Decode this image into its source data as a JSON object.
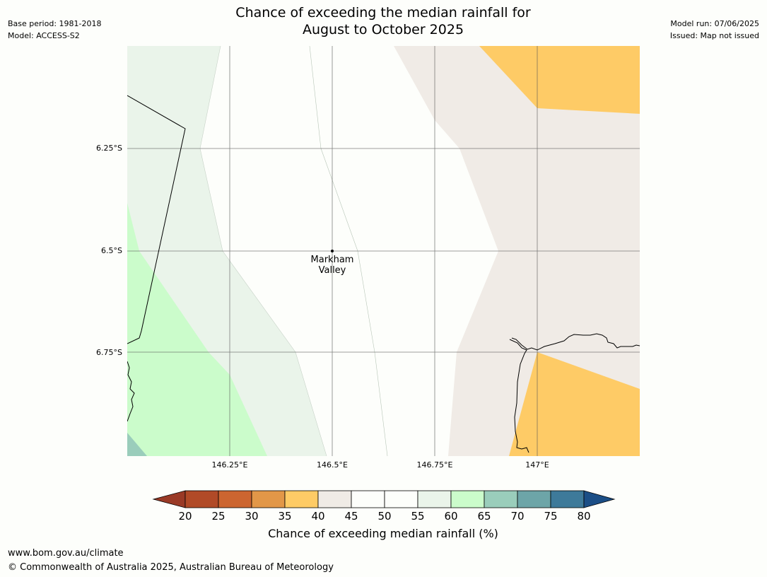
{
  "header": {
    "title_line1": "Chance of exceeding the median rainfall for",
    "title_line2": "August to October 2025",
    "base_period": "Base period: 1981-2018",
    "model": "Model: ACCESS-S2",
    "model_run": "Model run: 07/06/2025",
    "issued": "Issued: Map not issued"
  },
  "map": {
    "lon_ticks": [
      "146.25°E",
      "146.5°E",
      "146.75°E",
      "147°E"
    ],
    "lat_ticks": [
      "6.25°S",
      "6.5°S",
      "6.75°S"
    ],
    "location": {
      "name_line1": "Markham",
      "name_line2": "Valley"
    }
  },
  "colorbar": {
    "label": "Chance of exceeding median rainfall (%)",
    "ticks": [
      "20",
      "25",
      "30",
      "35",
      "40",
      "45",
      "50",
      "55",
      "60",
      "65",
      "70",
      "75",
      "80"
    ],
    "colors": {
      "below_20": "#9a3a26",
      "20_25": "#b14a27",
      "25_30": "#cc6530",
      "30_35": "#e29748",
      "35_40": "#fecb66",
      "40_45": "#f0ebe6",
      "45_50": "#fdfefb",
      "50_55": "#fdfefb",
      "55_60": "#eaf4ea",
      "60_65": "#cbfccb",
      "65_70": "#9acdbb",
      "70_75": "#6da5a8",
      "75_80": "#3e7a9a",
      "above_80": "#1b4e86"
    }
  },
  "footer": {
    "url": "www.bom.gov.au/climate",
    "copyright": "© Commonwealth of Australia 2025, Australian Bureau of Meteorology"
  }
}
